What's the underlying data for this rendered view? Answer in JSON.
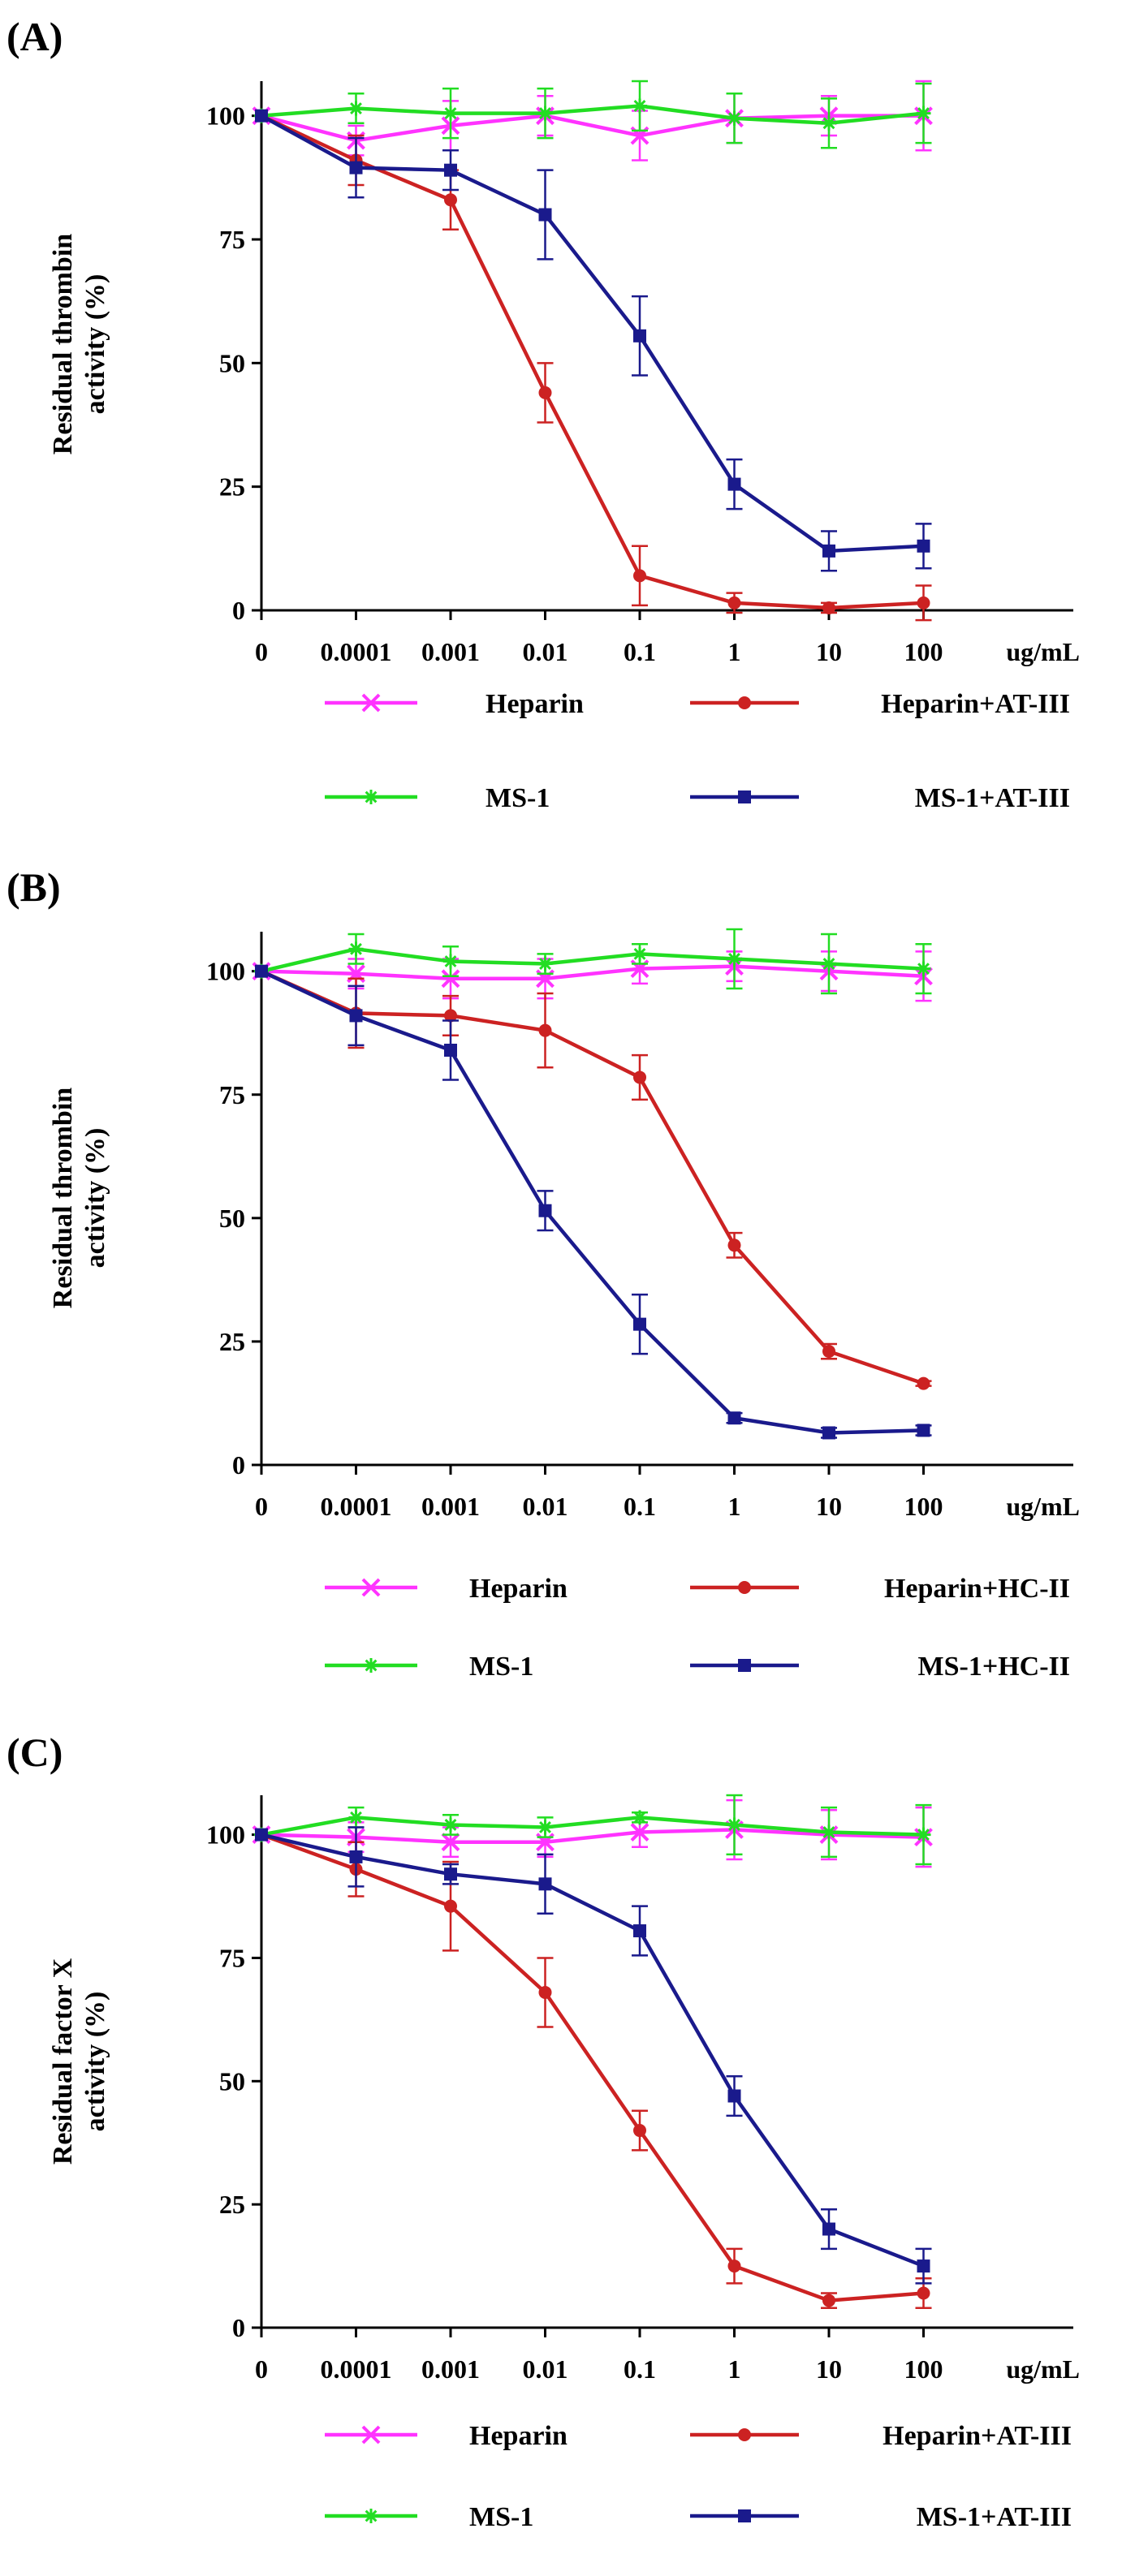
{
  "chart_data": [
    {
      "type": "line",
      "title": "(A)",
      "ylabel": [
        "Residual thrombin",
        "activity (%)"
      ],
      "xlabel": "ug/mL",
      "categories": [
        "0",
        "0.0001",
        "0.001",
        "0.01",
        "0.1",
        "1",
        "10",
        "100"
      ],
      "ylim": [
        0,
        107
      ],
      "yticks": [
        0,
        25,
        50,
        75,
        100
      ],
      "grid": false,
      "legend_position": "bottom",
      "series": [
        {
          "name": "Heparin",
          "color": "#ff33ff",
          "marker": "x",
          "values": [
            100,
            95,
            98,
            100,
            96,
            99.5,
            100,
            100
          ],
          "errors": [
            0,
            3,
            5,
            4,
            5,
            5,
            4,
            7
          ]
        },
        {
          "name": "Heparin+AT-III",
          "color": "#cc2222",
          "marker": "circle",
          "values": [
            100,
            91,
            83,
            44,
            7,
            1.5,
            0.5,
            1.5
          ],
          "errors": [
            0,
            5,
            6,
            6,
            6,
            2,
            1,
            3.5
          ]
        },
        {
          "name": "MS-1",
          "color": "#22dd22",
          "marker": "star",
          "values": [
            100,
            101.5,
            100.5,
            100.5,
            102,
            99.5,
            98.5,
            100.5
          ],
          "errors": [
            0,
            3,
            5,
            5,
            5,
            5,
            5,
            6
          ]
        },
        {
          "name": "MS-1+AT-III",
          "color": "#1a1a8c",
          "marker": "square",
          "values": [
            100,
            89.5,
            89,
            80,
            55.5,
            25.5,
            12,
            13
          ],
          "errors": [
            0,
            6,
            4,
            9,
            8,
            5,
            4,
            4.5
          ]
        }
      ]
    },
    {
      "type": "line",
      "title": "(B)",
      "ylabel": [
        "Residual thrombin",
        "activity (%)"
      ],
      "xlabel": "ug/mL",
      "categories": [
        "0",
        "0.0001",
        "0.001",
        "0.01",
        "0.1",
        "1",
        "10",
        "100"
      ],
      "ylim": [
        0,
        108
      ],
      "yticks": [
        0,
        25,
        50,
        75,
        100
      ],
      "grid": false,
      "legend_position": "bottom",
      "series": [
        {
          "name": "Heparin",
          "color": "#ff33ff",
          "marker": "x",
          "values": [
            100,
            99.5,
            98.5,
            98.5,
            100.5,
            101,
            100,
            99
          ],
          "errors": [
            0,
            3,
            4,
            4,
            3,
            3,
            4,
            5
          ]
        },
        {
          "name": "Heparin+HC-II",
          "color": "#cc2222",
          "marker": "circle",
          "values": [
            100,
            91.5,
            91,
            88,
            78.5,
            44.5,
            23,
            16.5
          ],
          "errors": [
            0,
            7,
            4,
            7.5,
            4.5,
            2.5,
            1.5,
            0.5
          ]
        },
        {
          "name": "MS-1",
          "color": "#22dd22",
          "marker": "star",
          "values": [
            100,
            104.5,
            102,
            101.5,
            103.5,
            102.5,
            101.5,
            100.5
          ],
          "errors": [
            0,
            3,
            3,
            2,
            2,
            6,
            6,
            5
          ]
        },
        {
          "name": "MS-1+HC-II",
          "color": "#1a1a8c",
          "marker": "square",
          "values": [
            100,
            91,
            84,
            51.5,
            28.5,
            9.5,
            6.5,
            7
          ],
          "errors": [
            0,
            6,
            6,
            4,
            6,
            1,
            1,
            1
          ]
        }
      ]
    },
    {
      "type": "line",
      "title": "(C)",
      "ylabel": [
        "Residual  factor X",
        "activity (%)"
      ],
      "xlabel": "ug/mL",
      "categories": [
        "0",
        "0.0001",
        "0.001",
        "0.01",
        "0.1",
        "1",
        "10",
        "100"
      ],
      "ylim": [
        0,
        108
      ],
      "yticks": [
        0,
        25,
        50,
        75,
        100
      ],
      "grid": false,
      "legend_position": "bottom",
      "series": [
        {
          "name": "Heparin",
          "color": "#ff33ff",
          "marker": "x",
          "values": [
            100,
            99.5,
            98.5,
            98.5,
            100.5,
            101,
            100,
            99.5
          ],
          "errors": [
            0,
            3,
            3,
            3,
            3,
            6,
            5,
            6
          ]
        },
        {
          "name": "Heparin+AT-III",
          "color": "#cc2222",
          "marker": "circle",
          "values": [
            100,
            93,
            85.5,
            68,
            40,
            12.5,
            5.5,
            7
          ],
          "errors": [
            0,
            5.5,
            9,
            7,
            4,
            3.5,
            1.5,
            3
          ]
        },
        {
          "name": "MS-1",
          "color": "#22dd22",
          "marker": "star",
          "values": [
            100,
            103.5,
            102,
            101.5,
            103.5,
            102,
            100.5,
            100
          ],
          "errors": [
            0,
            2,
            2,
            2,
            1,
            6,
            5,
            6
          ]
        },
        {
          "name": "MS-1+AT-III",
          "color": "#1a1a8c",
          "marker": "square",
          "values": [
            100,
            95.5,
            92,
            90,
            80.5,
            47,
            20,
            12.5
          ],
          "errors": [
            0,
            6,
            2,
            6,
            5,
            4,
            4,
            3.5
          ]
        }
      ]
    }
  ]
}
